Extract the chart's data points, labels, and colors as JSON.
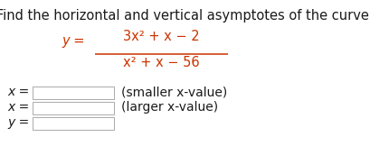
{
  "title": "Find the horizontal and vertical asymptotes of the curve.",
  "title_color": "#1a1a1a",
  "title_fontsize": 10.5,
  "numerator": "3x² + x − 2",
  "denominator": "x² + x − 56",
  "y_label": "y =",
  "x_label": "x =",
  "y_var_label": "y =",
  "smaller_label": "(smaller x-value)",
  "larger_label": "(larger x-value)",
  "fraction_color": "#cc3300",
  "text_color": "#1a1a1a",
  "bg_color": "#ffffff",
  "box_color": "#ffffff",
  "box_edge_color": "#aaaaaa",
  "font_family": "DejaVu Sans",
  "fig_width": 4.09,
  "fig_height": 1.62,
  "dpi": 100
}
